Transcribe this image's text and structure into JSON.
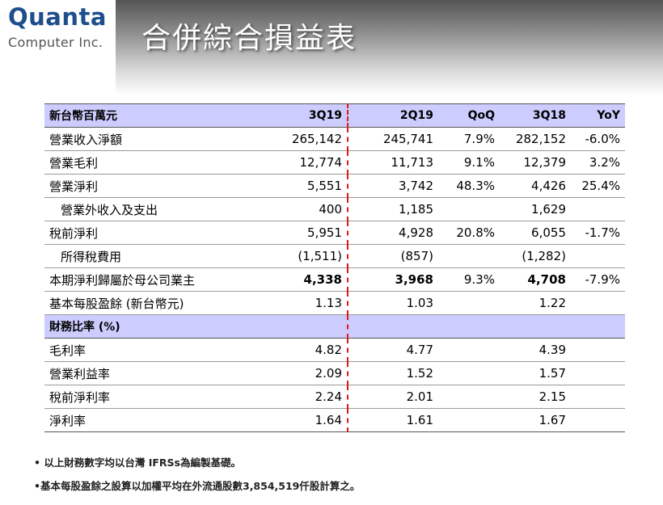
{
  "logo": {
    "name": "Quanta",
    "sub": "Computer Inc."
  },
  "title": "合併綜合損益表",
  "table": {
    "headers": [
      "新台幣百萬元",
      "3Q19",
      "2Q19",
      "QoQ",
      "3Q18",
      "YoY"
    ],
    "rows": [
      [
        "營業收入淨額",
        "265,142",
        "245,741",
        "7.9%",
        "282,152",
        "-6.0%"
      ],
      [
        "營業毛利",
        "12,774",
        "11,713",
        "9.1%",
        "12,379",
        "3.2%"
      ],
      [
        "營業淨利",
        "5,551",
        "3,742",
        "48.3%",
        "4,426",
        "25.4%"
      ],
      [
        "營業外收入及支出",
        "400",
        "1,185",
        "",
        "1,629",
        ""
      ],
      [
        "稅前淨利",
        "5,951",
        "4,928",
        "20.8%",
        "6,055",
        "-1.7%"
      ],
      [
        "所得稅費用",
        "(1,511)",
        "(857)",
        "",
        "(1,282)",
        ""
      ],
      [
        "本期淨利歸屬於母公司業主",
        "4,338",
        "3,968",
        "9.3%",
        "4,708",
        "-7.9%"
      ],
      [
        "基本每股盈餘 (新台幣元)",
        "1.13",
        "1.03",
        "",
        "1.22",
        ""
      ]
    ],
    "ratio_header": "財務比率 (%)",
    "ratio_rows": [
      [
        "毛利率",
        "4.82",
        "4.77",
        "",
        "4.39",
        ""
      ],
      [
        "營業利益率",
        "2.09",
        "1.52",
        "",
        "1.57",
        ""
      ],
      [
        "稅前淨利率",
        "2.24",
        "2.01",
        "",
        "2.15",
        ""
      ],
      [
        "淨利率",
        "1.64",
        "1.61",
        "",
        "1.67",
        ""
      ]
    ]
  },
  "notes": [
    "• 以上財務數字均以台灣 IFRSs為編製基礎。",
    "•基本每股盈餘之設算以加權平均在外流通股數3,854,519仟股計算之。"
  ],
  "colors": {
    "header_bg": "#ccccff",
    "separator": "#e01818",
    "logo": "#1f4e8c"
  }
}
